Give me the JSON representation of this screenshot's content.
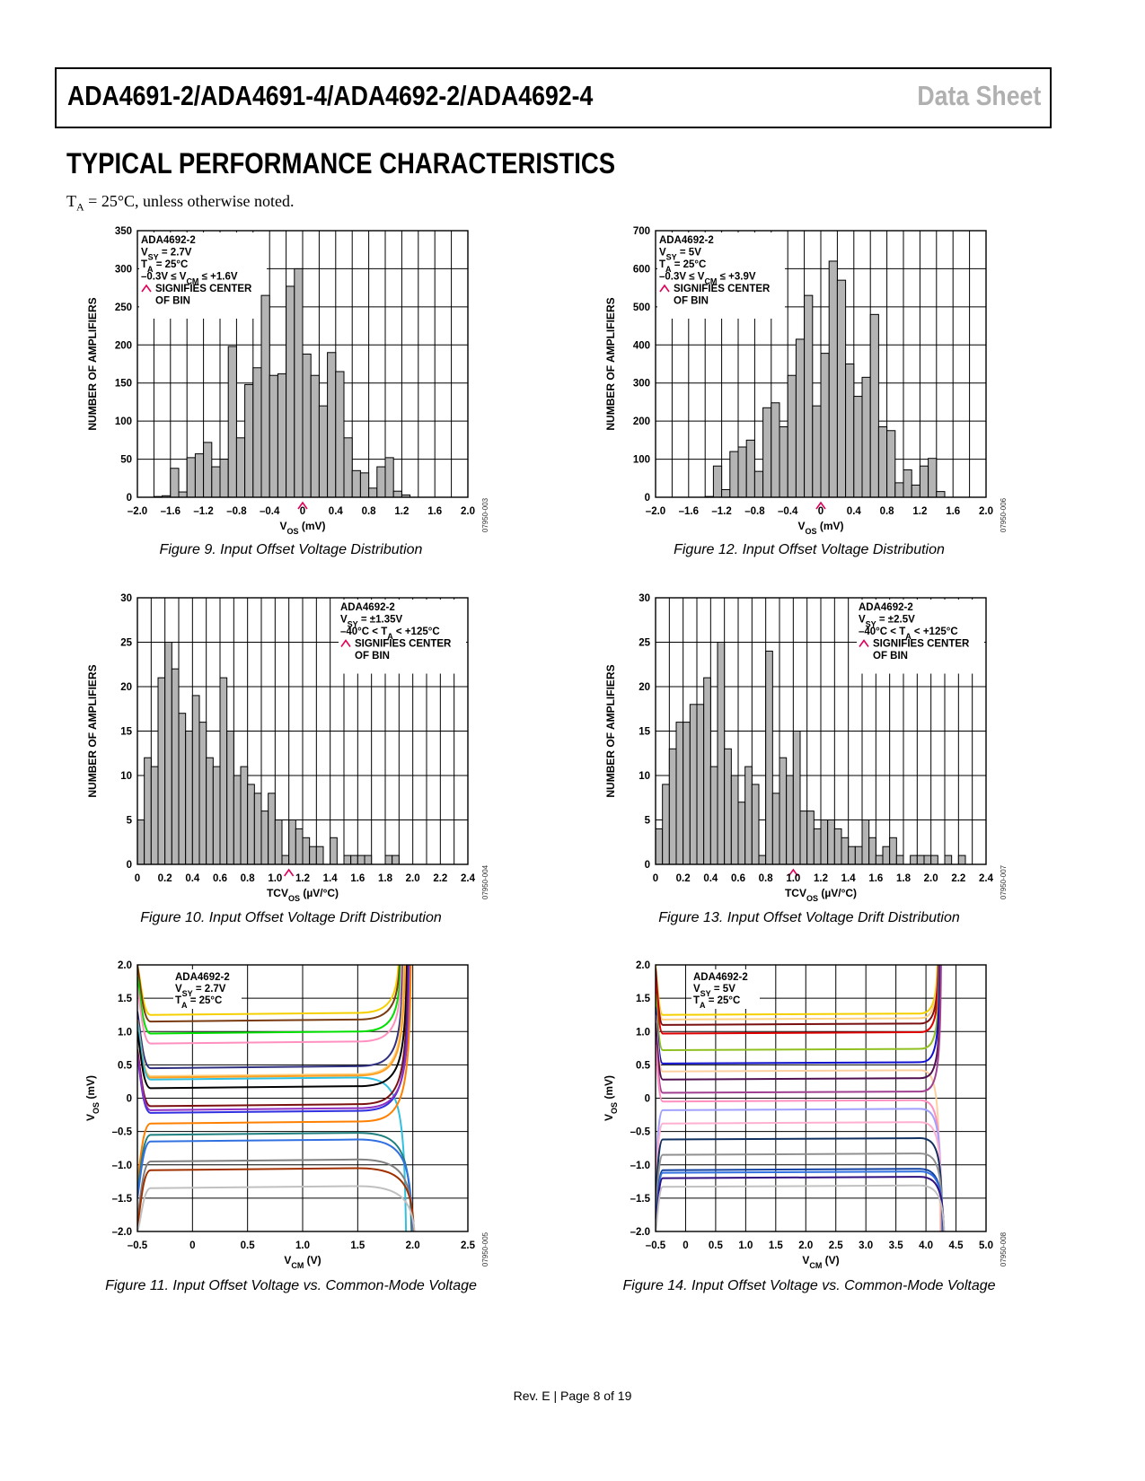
{
  "header": {
    "title": "ADA4691-2/ADA4691-4/ADA4692-2/ADA4692-4",
    "right": "Data Sheet"
  },
  "section_title": "TYPICAL PERFORMANCE CHARACTERISTICS",
  "note": {
    "t": "T",
    "sub": "A",
    "rest": " = 25°C, unless otherwise noted."
  },
  "footer": "Rev. E | Page 8 of 19",
  "colors": {
    "bar_fill": "#b4b4b4",
    "bin_marker": "#e0005a"
  },
  "chart_data": [
    {
      "id": "fig9",
      "type": "bar",
      "caption": "Figure 9. Input Offset Voltage Distribution",
      "ylabel": "NUMBER OF AMPLIFIERS",
      "xlabel_main": "V",
      "xlabel_sub": "OS",
      "xlabel_unit": " (mV)",
      "code": "07950-003",
      "xlim": [
        -2.0,
        2.0
      ],
      "ylim": [
        0,
        350
      ],
      "ystep": 50,
      "xtick_labels": [
        "–2.0",
        "–1.6",
        "–1.2",
        "–0.8",
        "–0.4",
        "0",
        "0.4",
        "0.8",
        "1.2",
        "1.6",
        "2.0"
      ],
      "xtick_values": [
        -2.0,
        -1.6,
        -1.2,
        -0.8,
        -0.4,
        0,
        0.4,
        0.8,
        1.2,
        1.6,
        2.0
      ],
      "ytick_labels": [
        "0",
        "50",
        "100",
        "150",
        "200",
        "250",
        "300",
        "350"
      ],
      "bin_start": -1.8,
      "bin_width": 0.1,
      "values": [
        1,
        2,
        38,
        7,
        52,
        57,
        72,
        40,
        50,
        198,
        78,
        148,
        170,
        265,
        160,
        162,
        277,
        300,
        188,
        160,
        120,
        190,
        165,
        78,
        35,
        32,
        12,
        40,
        52,
        8,
        3
      ],
      "bin_center_value": 0,
      "legend": [
        {
          "main": "ADA4692-2"
        },
        {
          "main": "V",
          "sub": "SY",
          "rest": " = 2.7V"
        },
        {
          "main": "T",
          "sub": "A",
          "rest": " = 25°C"
        },
        {
          "main": "–0.3V ≤ V",
          "sub": "CM",
          "rest": " ≤ +1.6V"
        },
        {
          "marker": true,
          "main": "SIGNIFIES CENTER"
        },
        {
          "main": "OF BIN",
          "indent": true
        }
      ]
    },
    {
      "id": "fig12",
      "type": "bar",
      "caption": "Figure 12. Input Offset Voltage Distribution",
      "ylabel": "NUMBER OF AMPLIFIERS",
      "xlabel_main": "V",
      "xlabel_sub": "OS",
      "xlabel_unit": " (mV)",
      "code": "07950-006",
      "xlim": [
        -2.0,
        2.0
      ],
      "ylim": [
        0,
        700
      ],
      "ystep": 100,
      "xtick_labels": [
        "–2.0",
        "–1.6",
        "–1.2",
        "–0.8",
        "–0.4",
        "0",
        "0.4",
        "0.8",
        "1.2",
        "1.6",
        "2.0"
      ],
      "xtick_values": [
        -2.0,
        -1.6,
        -1.2,
        -0.8,
        -0.4,
        0,
        0.4,
        0.8,
        1.2,
        1.6,
        2.0
      ],
      "ytick_labels": [
        "0",
        "100",
        "200",
        "300",
        "400",
        "500",
        "600",
        "700"
      ],
      "bin_start": -1.4,
      "bin_width": 0.1,
      "values": [
        2,
        82,
        20,
        120,
        132,
        150,
        68,
        235,
        248,
        185,
        320,
        415,
        530,
        240,
        378,
        620,
        570,
        350,
        265,
        315,
        480,
        185,
        175,
        38,
        72,
        32,
        82,
        102,
        15
      ],
      "bin_center_value": 0,
      "legend": [
        {
          "main": "ADA4692-2"
        },
        {
          "main": "V",
          "sub": "SY",
          "rest": " = 5V"
        },
        {
          "main": "T",
          "sub": "A",
          "rest": " = 25°C"
        },
        {
          "main": "–0.3V ≤ V",
          "sub": "CM",
          "rest": " ≤ +3.9V"
        },
        {
          "marker": true,
          "main": "SIGNIFIES CENTER"
        },
        {
          "main": "OF BIN",
          "indent": true
        }
      ]
    },
    {
      "id": "fig10",
      "type": "bar",
      "caption": "Figure 10. Input Offset Voltage Drift Distribution",
      "ylabel": "NUMBER OF AMPLIFIERS",
      "xlabel_main": "TCV",
      "xlabel_sub": "OS",
      "xlabel_unit": " (µV/°C)",
      "code": "07950-004",
      "xlim": [
        0,
        2.4
      ],
      "ylim": [
        0,
        30
      ],
      "ystep": 5,
      "xtick_labels": [
        "0",
        "0.2",
        "0.4",
        "0.6",
        "0.8",
        "1.0",
        "1.2",
        "1.4",
        "1.6",
        "1.8",
        "2.0",
        "2.2",
        "2.4"
      ],
      "xtick_values": [
        0,
        0.2,
        0.4,
        0.6,
        0.8,
        1.0,
        1.2,
        1.4,
        1.6,
        1.8,
        2.0,
        2.2,
        2.4
      ],
      "ytick_labels": [
        "0",
        "5",
        "10",
        "15",
        "20",
        "25",
        "30"
      ],
      "bin_start": 0.0,
      "bin_width": 0.05,
      "values": [
        5,
        12,
        11,
        21,
        25,
        22,
        17,
        15,
        19,
        16,
        12,
        11,
        21,
        15,
        10,
        11,
        9,
        8,
        6,
        8,
        5,
        1,
        5,
        4,
        3,
        2,
        2,
        0,
        3,
        0,
        1,
        1,
        1,
        1,
        0,
        0,
        1,
        1
      ],
      "bin_center_value": 1.1,
      "legend": [
        {
          "main": "ADA4692-2"
        },
        {
          "main": "V",
          "sub": "SY",
          "rest": " = ±1.35V"
        },
        {
          "main": "–40°C < T",
          "sub": "A",
          "rest": " < +125°C"
        },
        {
          "marker": true,
          "main": "SIGNIFIES CENTER"
        },
        {
          "main": "OF BIN",
          "indent": true
        }
      ]
    },
    {
      "id": "fig13",
      "type": "bar",
      "caption": "Figure 13. Input Offset Voltage Drift Distribution",
      "ylabel": "NUMBER OF AMPLIFIERS",
      "xlabel_main": "TCV",
      "xlabel_sub": "OS",
      "xlabel_unit": " (µV/°C)",
      "code": "07950-007",
      "xlim": [
        0,
        2.4
      ],
      "ylim": [
        0,
        30
      ],
      "ystep": 5,
      "xtick_labels": [
        "0",
        "0.2",
        "0.4",
        "0.6",
        "0.8",
        "1.0",
        "1.2",
        "1.4",
        "1.6",
        "1.8",
        "2.0",
        "2.2",
        "2.4"
      ],
      "xtick_values": [
        0,
        0.2,
        0.4,
        0.6,
        0.8,
        1.0,
        1.2,
        1.4,
        1.6,
        1.8,
        2.0,
        2.2,
        2.4
      ],
      "ytick_labels": [
        "0",
        "5",
        "10",
        "15",
        "20",
        "25",
        "30"
      ],
      "bin_start": 0.0,
      "bin_width": 0.05,
      "values": [
        4,
        9,
        13,
        16,
        16,
        18,
        18,
        21,
        11,
        25,
        13,
        10,
        7,
        11,
        9,
        1,
        24,
        8,
        12,
        10,
        15,
        6,
        6,
        4,
        5,
        5,
        4,
        3,
        2,
        2,
        5,
        3,
        1,
        2,
        3,
        1,
        0,
        1,
        1,
        1,
        1,
        0,
        1,
        0,
        1
      ],
      "bin_center_value": 1.0,
      "legend": [
        {
          "main": "ADA4692-2"
        },
        {
          "main": "V",
          "sub": "SY",
          "rest": " = ±2.5V"
        },
        {
          "main": "–40°C < T",
          "sub": "A",
          "rest": " < +125°C"
        },
        {
          "marker": true,
          "main": "SIGNIFIES CENTER"
        },
        {
          "main": "OF BIN",
          "indent": true
        }
      ]
    },
    {
      "id": "fig11",
      "type": "line",
      "caption": "Figure 11. Input Offset Voltage vs. Common-Mode Voltage",
      "ylabel_main": "V",
      "ylabel_sub": "OS",
      "ylabel_unit": " (mV)",
      "xlabel_main": "V",
      "xlabel_sub": "CM",
      "xlabel_unit": " (V)",
      "code": "07950-005",
      "xlim": [
        -0.5,
        2.5
      ],
      "ylim": [
        -2.0,
        2.0
      ],
      "xtick_labels": [
        "–0.5",
        "0",
        "0.5",
        "1.0",
        "1.5",
        "2.0",
        "2.5"
      ],
      "xtick_values": [
        -0.5,
        0,
        0.5,
        1.0,
        1.5,
        2.0,
        2.5
      ],
      "ytick_labels": [
        "–2.0",
        "–1.5",
        "–1.0",
        "–0.5",
        "0",
        "0.5",
        "1.0",
        "1.5",
        "2.0"
      ],
      "ytick_values": [
        -2.0,
        -1.5,
        -1.0,
        -0.5,
        0,
        0.5,
        1.0,
        1.5,
        2.0
      ],
      "x_start": -0.5,
      "x_flat_end": 1.5,
      "x_edge": 1.95,
      "series": [
        {
          "color": "#f5d000",
          "level": 1.25,
          "end_dir": 1,
          "start_dir": 1
        },
        {
          "color": "#7a3b10",
          "level": 1.15,
          "end_dir": 1,
          "start_dir": 1
        },
        {
          "color": "#00e000",
          "level": 0.97,
          "end_dir": 1,
          "start_dir": 1
        },
        {
          "color": "#ff90c0",
          "level": 0.82,
          "end_dir": 1,
          "start_dir": 1
        },
        {
          "color": "#303080",
          "level": 0.45,
          "end_dir": 1,
          "start_dir": 1
        },
        {
          "color": "#fdd080",
          "level": 0.33,
          "end_dir": 1,
          "start_dir": 1
        },
        {
          "color": "#ffa020",
          "level": 0.31,
          "end_dir": 1,
          "start_dir": 1
        },
        {
          "color": "#30c0e0",
          "level": 0.28,
          "end_dir": -1,
          "start_dir": 1
        },
        {
          "color": "#000000",
          "level": 0.15,
          "end_dir": 1,
          "start_dir": 1
        },
        {
          "color": "#7a1010",
          "level": -0.12,
          "end_dir": 1,
          "start_dir": 1
        },
        {
          "color": "#3030e0",
          "level": -0.22,
          "end_dir": 1,
          "start_dir": 1
        },
        {
          "color": "#9030c0",
          "level": -0.18,
          "end_dir": 1,
          "start_dir": 1
        },
        {
          "color": "#ff8000",
          "level": -0.38,
          "end_dir": 1,
          "start_dir": -1
        },
        {
          "color": "#208080",
          "level": -0.55,
          "end_dir": -1,
          "start_dir": -1
        },
        {
          "color": "#3070e0",
          "level": -0.65,
          "end_dir": -1,
          "start_dir": -1
        },
        {
          "color": "#808080",
          "level": -0.95,
          "end_dir": -1,
          "start_dir": -1
        },
        {
          "color": "#a03000",
          "level": -1.08,
          "end_dir": -1,
          "start_dir": -1
        },
        {
          "color": "#c0c0c0",
          "level": -1.35,
          "end_dir": -1,
          "start_dir": -1
        }
      ],
      "legend": [
        {
          "main": "ADA4692-2"
        },
        {
          "main": "V",
          "sub": "SY",
          "rest": " = 2.7V"
        },
        {
          "main": "T",
          "sub": "A",
          "rest": " = 25°C"
        }
      ]
    },
    {
      "id": "fig14",
      "type": "line",
      "caption": "Figure 14. Input Offset Voltage vs. Common-Mode Voltage",
      "ylabel_main": "V",
      "ylabel_sub": "OS",
      "ylabel_unit": " (mV)",
      "xlabel_main": "V",
      "xlabel_sub": "CM",
      "xlabel_unit": " (V)",
      "code": "07950-008",
      "xlim": [
        -0.5,
        5.0
      ],
      "ylim": [
        -2.0,
        2.0
      ],
      "xtick_labels": [
        "–0.5",
        "0",
        "0.5",
        "1.0",
        "1.5",
        "2.0",
        "2.5",
        "3.0",
        "3.5",
        "4.0",
        "4.5",
        "5.0"
      ],
      "xtick_values": [
        -0.5,
        0,
        0.5,
        1.0,
        1.5,
        2.0,
        2.5,
        3.0,
        3.5,
        4.0,
        4.5,
        5.0
      ],
      "ytick_labels": [
        "–2.0",
        "–1.5",
        "–1.0",
        "–0.5",
        "0",
        "0.5",
        "1.0",
        "1.5",
        "2.0"
      ],
      "ytick_values": [
        -2.0,
        -1.5,
        -1.0,
        -0.5,
        0,
        0.5,
        1.0,
        1.5,
        2.0
      ],
      "x_start": -0.5,
      "x_flat_end": 3.9,
      "x_edge": 4.25,
      "series": [
        {
          "color": "#f5d000",
          "level": 1.25,
          "end_dir": 1,
          "start_dir": 1
        },
        {
          "color": "#fdd080",
          "level": 1.18,
          "end_dir": 1,
          "start_dir": 1
        },
        {
          "color": "#7a1010",
          "level": 1.1,
          "end_dir": 1,
          "start_dir": 1
        },
        {
          "color": "#e00000",
          "level": 0.97,
          "end_dir": 1,
          "start_dir": 1
        },
        {
          "color": "#90c020",
          "level": 0.72,
          "end_dir": 1,
          "start_dir": 1
        },
        {
          "color": "#1010d0",
          "level": 0.52,
          "end_dir": 1,
          "start_dir": 1
        },
        {
          "color": "#fdd0a0",
          "level": 0.4,
          "end_dir": -1,
          "start_dir": 1
        },
        {
          "color": "#501050",
          "level": 0.28,
          "end_dir": 1,
          "start_dir": 1
        },
        {
          "color": "#a04090",
          "level": 0.08,
          "end_dir": 1,
          "start_dir": 1
        },
        {
          "color": "#ff90c0",
          "level": -0.05,
          "end_dir": -1,
          "start_dir": 1
        },
        {
          "color": "#a0a0ff",
          "level": -0.18,
          "end_dir": -1,
          "start_dir": -1
        },
        {
          "color": "#ffb0d0",
          "level": -0.38,
          "end_dir": -1,
          "start_dir": -1
        },
        {
          "color": "#103060",
          "level": -0.62,
          "end_dir": -1,
          "start_dir": -1
        },
        {
          "color": "#909090",
          "level": -0.85,
          "end_dir": -1,
          "start_dir": -1
        },
        {
          "color": "#1040a0",
          "level": -1.08,
          "end_dir": -1,
          "start_dir": -1
        },
        {
          "color": "#3070e0",
          "level": -1.12,
          "end_dir": -1,
          "start_dir": -1
        },
        {
          "color": "#301080",
          "level": -1.2,
          "end_dir": -1,
          "start_dir": -1
        },
        {
          "color": "#c0c0c0",
          "level": -1.33,
          "end_dir": -1,
          "start_dir": -1
        }
      ],
      "legend": [
        {
          "main": "ADA4692-2"
        },
        {
          "main": "V",
          "sub": "SY",
          "rest": " = 5V"
        },
        {
          "main": "T",
          "sub": "A",
          "rest": " = 25°C"
        }
      ]
    }
  ]
}
